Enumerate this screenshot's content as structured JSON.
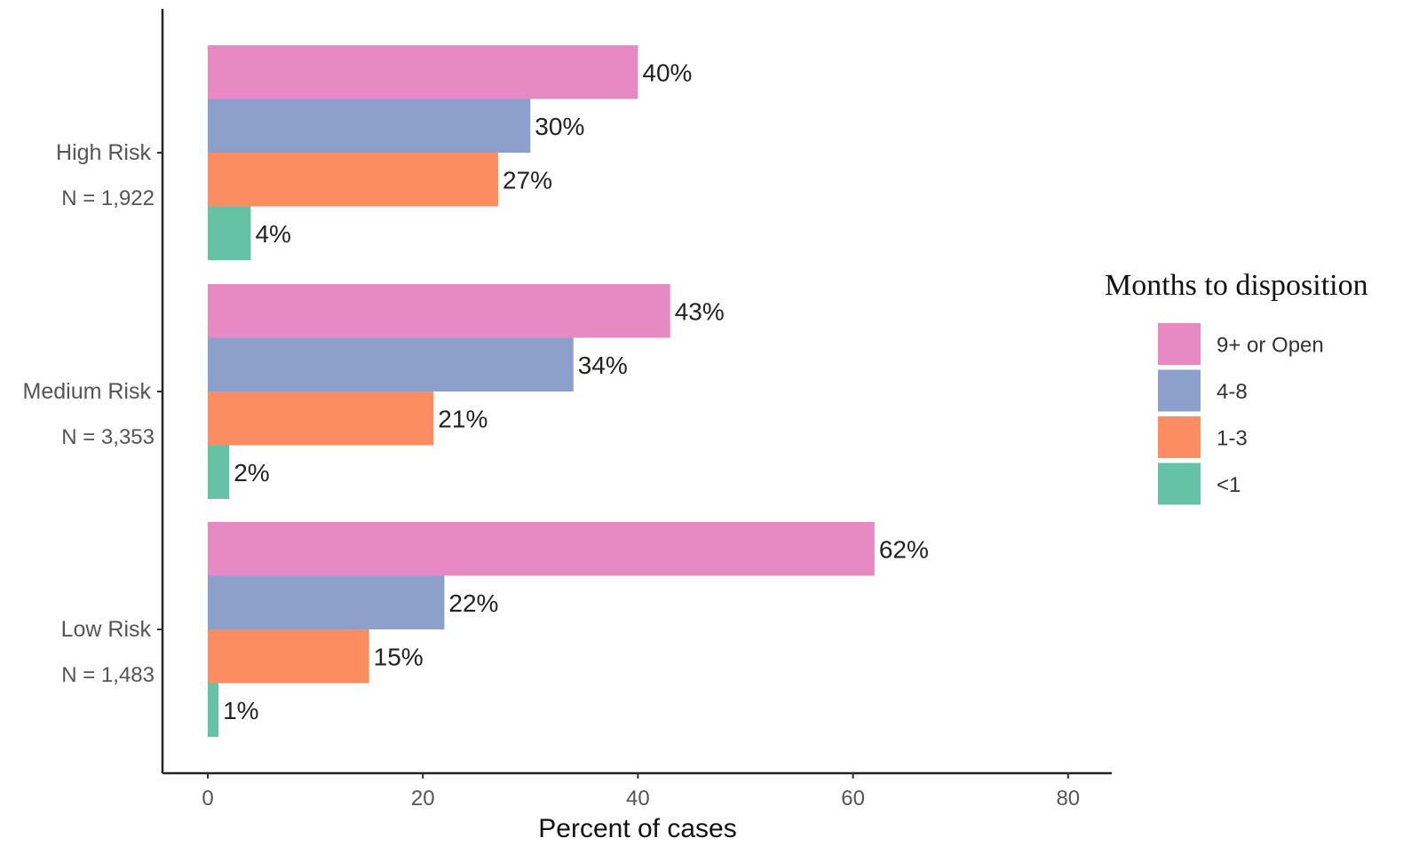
{
  "chart_data": {
    "type": "bar",
    "orientation": "horizontal",
    "xlabel": "Percent of cases",
    "xlim": [
      0,
      80
    ],
    "xticks": [
      0,
      20,
      40,
      60,
      80
    ],
    "categories": [
      {
        "name": "High Risk",
        "n_label": "N = 1,922"
      },
      {
        "name": "Medium Risk",
        "n_label": "N = 3,353"
      },
      {
        "name": "Low Risk",
        "n_label": "N = 1,483"
      }
    ],
    "series": [
      {
        "name": "9+ or Open",
        "color": "#e78ac3",
        "values": [
          40,
          43,
          62
        ],
        "labels": [
          "40%",
          "43%",
          "62%"
        ]
      },
      {
        "name": "4-8",
        "color": "#8da0cb",
        "values": [
          30,
          34,
          22
        ],
        "labels": [
          "30%",
          "34%",
          "22%"
        ]
      },
      {
        "name": "1-3",
        "color": "#fc8d62",
        "values": [
          27,
          21,
          15
        ],
        "labels": [
          "27%",
          "21%",
          "15%"
        ]
      },
      {
        "name": "<1",
        "color": "#66c2a5",
        "values": [
          4,
          2,
          1
        ],
        "labels": [
          "4%",
          "2%",
          "1%"
        ]
      }
    ],
    "legend": {
      "title": "Months to disposition",
      "position": "right"
    },
    "grid": false
  }
}
